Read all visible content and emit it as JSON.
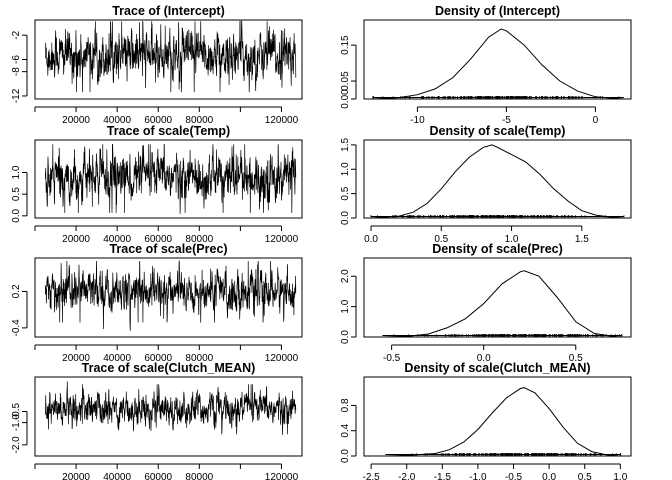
{
  "chart_data": [
    {
      "type": "line",
      "title": "Trace of (Intercept)",
      "xlim": [
        0,
        130000
      ],
      "ylim": [
        -12.5,
        0.5
      ],
      "xticks": [
        20000,
        40000,
        60000,
        80000,
        120000
      ],
      "xtick_labels": [
        "20000",
        "40000",
        "60000",
        "80000",
        "120000"
      ],
      "yticks": [
        -12,
        -8,
        -6,
        -2
      ],
      "ytick_labels": [
        "-12",
        "-8",
        "-6",
        "-2"
      ],
      "series": [
        {
          "mean": -5.3,
          "sd": 1.9,
          "min": -12,
          "max": 0.3
        }
      ]
    },
    {
      "type": "line",
      "title": "Density of (Intercept)",
      "xlim": [
        -13,
        2
      ],
      "ylim": [
        0,
        0.22
      ],
      "xticks": [
        -10,
        -5,
        0
      ],
      "xtick_labels": [
        "-10",
        "-5",
        "0"
      ],
      "yticks": [
        0.0,
        0.05,
        0.15
      ],
      "ytick_labels": [
        "0.00",
        "0.05",
        "0.15"
      ],
      "series": [
        {
          "x": [
            -12.5,
            -11,
            -10,
            -9,
            -8,
            -7,
            -6,
            -5.3,
            -5,
            -4,
            -3,
            -2,
            -1,
            0,
            1,
            1.6
          ],
          "y": [
            0.0,
            0.004,
            0.012,
            0.028,
            0.06,
            0.112,
            0.172,
            0.195,
            0.19,
            0.15,
            0.095,
            0.05,
            0.022,
            0.006,
            0.002,
            0.0
          ]
        }
      ]
    },
    {
      "type": "line",
      "title": "Trace of scale(Temp)",
      "xlim": [
        0,
        130000
      ],
      "ylim": [
        -0.05,
        1.75
      ],
      "xticks": [
        20000,
        40000,
        60000,
        80000,
        120000
      ],
      "xtick_labels": [
        "20000",
        "40000",
        "60000",
        "80000",
        "120000"
      ],
      "yticks": [
        0.0,
        0.5,
        1.0
      ],
      "ytick_labels": [
        "0.0",
        "0.5",
        "1.0"
      ],
      "series": [
        {
          "mean": 0.9,
          "sd": 0.26,
          "min": 0.05,
          "max": 1.65
        }
      ]
    },
    {
      "type": "line",
      "title": "Density of scale(Temp)",
      "xlim": [
        -0.05,
        1.85
      ],
      "ylim": [
        0,
        1.6
      ],
      "xticks": [
        0.0,
        0.5,
        1.0,
        1.5
      ],
      "xtick_labels": [
        "0.0",
        "0.5",
        "1.0",
        "1.5"
      ],
      "yticks": [
        0.0,
        0.5,
        1.0,
        1.5
      ],
      "ytick_labels": [
        "0.0",
        "0.5",
        "1.0",
        "1.5"
      ],
      "series": [
        {
          "x": [
            0.0,
            0.2,
            0.3,
            0.4,
            0.5,
            0.6,
            0.7,
            0.8,
            0.86,
            0.9,
            1.0,
            1.1,
            1.2,
            1.3,
            1.4,
            1.5,
            1.6,
            1.7,
            1.8
          ],
          "y": [
            0.0,
            0.04,
            0.12,
            0.3,
            0.6,
            0.95,
            1.25,
            1.45,
            1.5,
            1.45,
            1.3,
            1.15,
            0.9,
            0.6,
            0.35,
            0.15,
            0.06,
            0.02,
            0.0
          ]
        }
      ]
    },
    {
      "type": "line",
      "title": "Trace of scale(Prec)",
      "xlim": [
        0,
        130000
      ],
      "ylim": [
        -0.55,
        0.75
      ],
      "xticks": [
        20000,
        40000,
        60000,
        80000,
        120000
      ],
      "xtick_labels": [
        "20000",
        "40000",
        "60000",
        "80000",
        "120000"
      ],
      "yticks": [
        -0.4,
        0.2
      ],
      "ytick_labels": [
        "-0.4",
        "0.2"
      ],
      "series": [
        {
          "mean": 0.2,
          "sd": 0.16,
          "min": -0.45,
          "max": 0.7
        }
      ]
    },
    {
      "type": "line",
      "title": "Density of scale(Prec)",
      "xlim": [
        -0.65,
        0.8
      ],
      "ylim": [
        0,
        2.6
      ],
      "xticks": [
        -0.5,
        0.0,
        0.5
      ],
      "xtick_labels": [
        "-0.5",
        "0.0",
        "0.5"
      ],
      "yticks": [
        0.0,
        1.0,
        2.0
      ],
      "ytick_labels": [
        "0.0",
        "1.0",
        "2.0"
      ],
      "series": [
        {
          "x": [
            -0.55,
            -0.4,
            -0.3,
            -0.2,
            -0.1,
            0.0,
            0.1,
            0.2,
            0.22,
            0.3,
            0.4,
            0.5,
            0.6,
            0.7,
            0.75
          ],
          "y": [
            0.0,
            0.03,
            0.1,
            0.3,
            0.6,
            1.1,
            1.75,
            2.15,
            2.18,
            2.0,
            1.3,
            0.5,
            0.12,
            0.02,
            0.0
          ]
        }
      ]
    },
    {
      "type": "line",
      "title": "Trace of scale(Clutch_MEAN)",
      "xlim": [
        0,
        130000
      ],
      "ylim": [
        -2.5,
        1.05
      ],
      "xticks": [
        20000,
        40000,
        60000,
        80000,
        120000
      ],
      "xtick_labels": [
        "20000",
        "40000",
        "60000",
        "80000",
        "120000"
      ],
      "yticks": [
        -2.0,
        -1.0,
        -0.5
      ],
      "ytick_labels": [
        "-2.0",
        "-1.0",
        "-0.5"
      ],
      "series": [
        {
          "mean": -0.4,
          "sd": 0.35,
          "min": -2.2,
          "max": 0.85
        }
      ]
    },
    {
      "type": "line",
      "title": "Density of scale(Clutch_MEAN)",
      "xlim": [
        -2.6,
        1.15
      ],
      "ylim": [
        0,
        1.25
      ],
      "xticks": [
        -2.5,
        -2.0,
        -1.5,
        -1.0,
        -0.5,
        0.0,
        0.5,
        1.0
      ],
      "xtick_labels": [
        "-2.5",
        "-2.0",
        "-1.5",
        "-1.0",
        "-0.5",
        "0.0",
        "0.5",
        "1.0"
      ],
      "yticks": [
        0.0,
        0.4,
        0.8
      ],
      "ytick_labels": [
        "0.0",
        "0.4",
        "0.8"
      ],
      "series": [
        {
          "x": [
            -2.3,
            -2.0,
            -1.6,
            -1.4,
            -1.2,
            -1.0,
            -0.8,
            -0.6,
            -0.4,
            -0.35,
            -0.2,
            0.0,
            0.2,
            0.4,
            0.6,
            0.8,
            1.0
          ],
          "y": [
            0.0,
            0.01,
            0.04,
            0.1,
            0.22,
            0.42,
            0.68,
            0.92,
            1.07,
            1.08,
            1.0,
            0.75,
            0.45,
            0.2,
            0.07,
            0.02,
            0.0
          ]
        }
      ]
    }
  ]
}
